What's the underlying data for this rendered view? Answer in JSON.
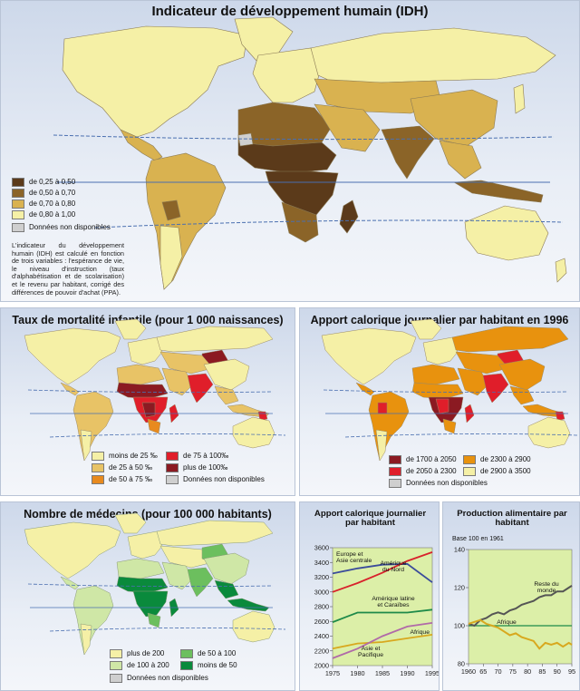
{
  "idh": {
    "title": "Indicateur de développement humain (IDH)",
    "legend": [
      {
        "label": "de 0,25 à 0,50",
        "color": "#5b3a1a"
      },
      {
        "label": "de 0,50 à 0,70",
        "color": "#8b6428"
      },
      {
        "label": "de 0,70 à 0,80",
        "color": "#d9b250"
      },
      {
        "label": "de 0,80 à 1,00",
        "color": "#f5f0a6"
      }
    ],
    "na_label": "Données non disponibles",
    "na_color": "#cfcfcf",
    "note": "L'indicateur du développement humain (IDH) est calculé en fonction de trois variables : l'espérance de vie, le niveau d'instruction (taux d'alphabétisation et de scolarisation) et le revenu par habitant, corrigé des différences de pouvoir d'achat (PPA)."
  },
  "mortality": {
    "title": "Taux de mortalité infantile (pour 1 000 naissances)",
    "legend": [
      {
        "label": "moins de 25 ‰",
        "color": "#f5f0a6"
      },
      {
        "label": "de 25 à 50 ‰",
        "color": "#e8c366"
      },
      {
        "label": "de 50 à 75 ‰",
        "color": "#e88a1e"
      },
      {
        "label": "de 75 à 100‰",
        "color": "#e01e2a"
      },
      {
        "label": "plus de 100‰",
        "color": "#8b1a22"
      }
    ],
    "na_label": "Données non disponibles",
    "na_color": "#cfcfcf"
  },
  "calories": {
    "title": "Apport calorique journalier par habitant en 1996",
    "legend": [
      {
        "label": "de 1700 à 2050",
        "color": "#8b1a22"
      },
      {
        "label": "de 2050 à 2300",
        "color": "#e01e2a"
      },
      {
        "label": "de 2300 à 2900",
        "color": "#e8920e"
      },
      {
        "label": "de 2900 à 3500",
        "color": "#f5f0a6"
      }
    ],
    "na_label": "Données non disponibles",
    "na_color": "#cfcfcf"
  },
  "doctors": {
    "title": "Nombre de médecins (pour 100 000 habitants)",
    "legend": [
      {
        "label": "plus de 200",
        "color": "#f5f0a6"
      },
      {
        "label": "de 100 à 200",
        "color": "#cfe7a6"
      },
      {
        "label": "de 50 à 100",
        "color": "#6cbf5e"
      },
      {
        "label": "moins de 50",
        "color": "#0a8a3c"
      }
    ],
    "na_label": "Données non disponibles",
    "na_color": "#cfcfcf"
  },
  "chart_data": [
    {
      "type": "line",
      "title": "Apport calorique journalier par habitant",
      "x": [
        1975,
        1980,
        1985,
        1990,
        1995
      ],
      "ylim": [
        2000,
        3600
      ],
      "yticks": [
        2000,
        2200,
        2400,
        2600,
        2800,
        3000,
        3200,
        3400,
        3600
      ],
      "xticks": [
        1975,
        1980,
        1985,
        1990,
        1995
      ],
      "grid": false,
      "series": [
        {
          "name": "Europe et Asie centrale",
          "color": "#3b4c9b",
          "values": [
            3250,
            3320,
            3370,
            3380,
            3130
          ]
        },
        {
          "name": "Amérique du Nord",
          "color": "#d8212b",
          "values": [
            3000,
            3120,
            3260,
            3420,
            3540
          ]
        },
        {
          "name": "Amérique latine et Caraïbes",
          "color": "#1e8a4a",
          "values": [
            2590,
            2720,
            2720,
            2720,
            2760
          ]
        },
        {
          "name": "Afrique",
          "color": "#d8a81e",
          "values": [
            2230,
            2300,
            2320,
            2370,
            2420
          ]
        },
        {
          "name": "Asie et Pacifique",
          "color": "#b06aa8",
          "values": [
            2100,
            2230,
            2400,
            2530,
            2580
          ]
        }
      ]
    },
    {
      "type": "line",
      "title": "Production alimentaire par habitant",
      "subtitle": "Base 100 en 1961",
      "x": [
        1960,
        1962,
        1964,
        1966,
        1968,
        1970,
        1972,
        1974,
        1976,
        1978,
        1980,
        1982,
        1984,
        1986,
        1988,
        1990,
        1992,
        1994,
        1995
      ],
      "ylim": [
        80,
        140
      ],
      "yticks": [
        80,
        100,
        120,
        140
      ],
      "xtick_labels": [
        "1960",
        "65",
        "70",
        "75",
        "80",
        "85",
        "90",
        "95"
      ],
      "xticks": [
        1960,
        1965,
        1970,
        1975,
        1980,
        1985,
        1990,
        1995
      ],
      "reference_line": 100,
      "series": [
        {
          "name": "Reste du monde",
          "color": "#555555",
          "values": [
            101,
            100,
            103,
            104,
            106,
            107,
            106,
            108,
            109,
            111,
            112,
            113,
            115,
            116,
            116,
            118,
            118,
            120,
            121
          ]
        },
        {
          "name": "Afrique",
          "color": "#d8a81e",
          "values": [
            101,
            102,
            103,
            101,
            100,
            99,
            97,
            95,
            96,
            94,
            93,
            92,
            88,
            91,
            90,
            91,
            89,
            91,
            90
          ]
        }
      ]
    }
  ]
}
